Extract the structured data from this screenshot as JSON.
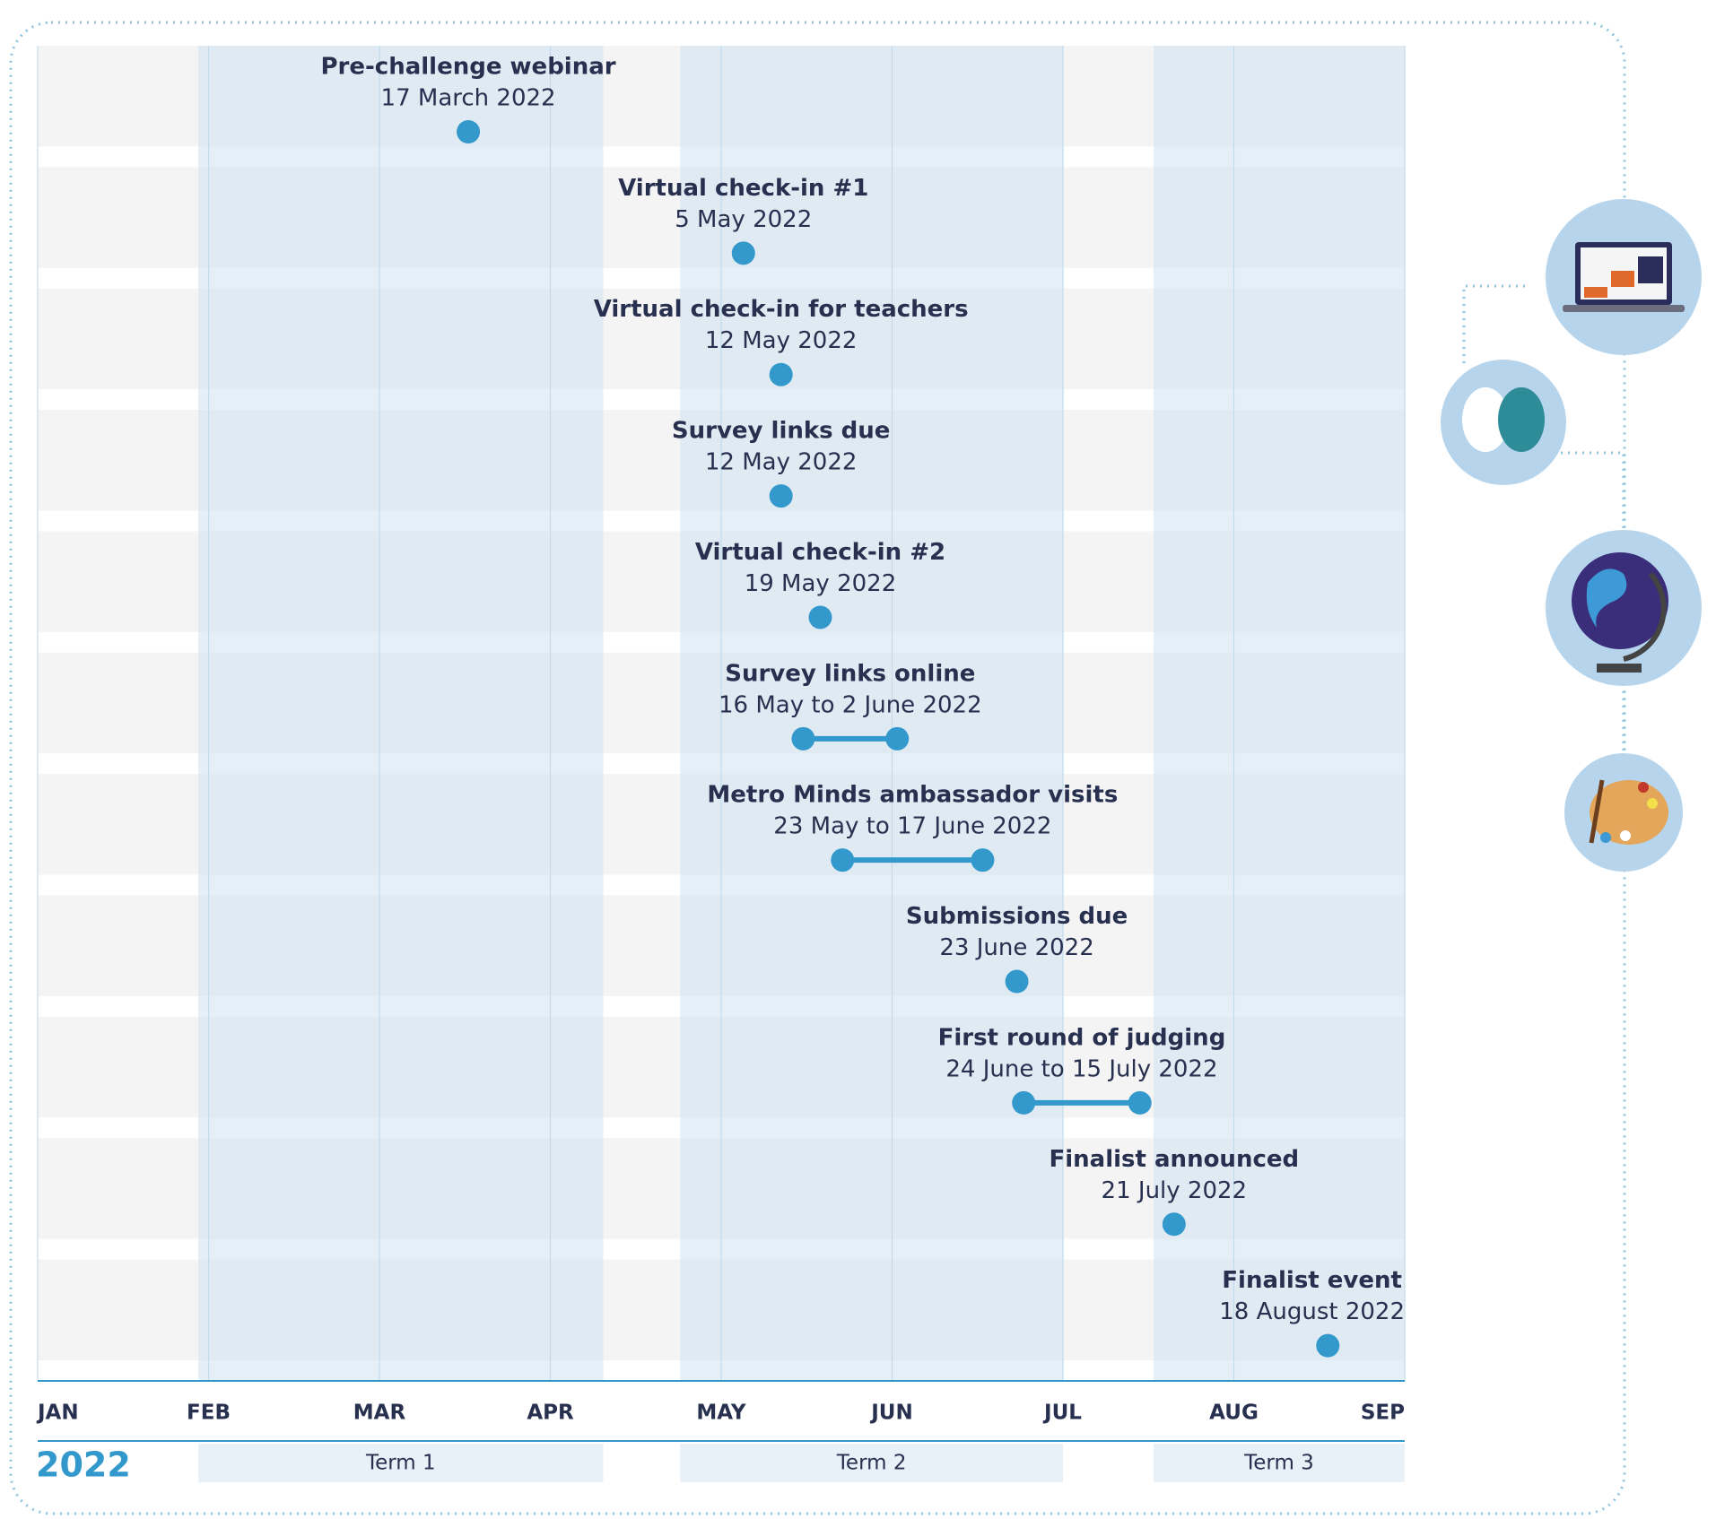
{
  "chart_data": {
    "type": "timeline",
    "year": "2022",
    "xlim": [
      0,
      8
    ],
    "xticks": [
      {
        "value": 0,
        "label": "JAN"
      },
      {
        "value": 1,
        "label": "FEB"
      },
      {
        "value": 2,
        "label": "MAR"
      },
      {
        "value": 3,
        "label": "APR"
      },
      {
        "value": 4,
        "label": "MAY"
      },
      {
        "value": 5,
        "label": "JUN"
      },
      {
        "value": 6,
        "label": "JUL"
      },
      {
        "value": 7,
        "label": "AUG"
      },
      {
        "value": 8,
        "label": "SEP"
      }
    ],
    "grid": true,
    "color": "#3399cc",
    "terms": [
      {
        "name": "Term 1",
        "start": 0.94,
        "end": 3.31
      },
      {
        "name": "Term 2",
        "start": 3.76,
        "end": 6.0
      },
      {
        "name": "Term 3",
        "start": 6.53,
        "end": 8
      }
    ],
    "events": [
      {
        "label": "Pre-challenge webinar",
        "date": "17 March 2022",
        "start": 2.52
      },
      {
        "label": "Virtual check-in #1",
        "date": "5 May 2022",
        "start": 4.13
      },
      {
        "label": "Virtual check-in for teachers",
        "date": "12 May 2022",
        "start": 4.35
      },
      {
        "label": "Survey links due",
        "date": "12 May 2022",
        "start": 4.35
      },
      {
        "label": "Virtual check-in #2",
        "date": "19 May 2022",
        "start": 4.58
      },
      {
        "label": "Survey links online",
        "date": "16 May to 2 June 2022",
        "start": 4.48,
        "end": 5.03
      },
      {
        "label": "Metro Minds ambassador visits",
        "date": "23 May to 17 June 2022",
        "start": 4.71,
        "end": 5.53
      },
      {
        "label": "Submissions due",
        "date": "23 June 2022",
        "start": 5.73
      },
      {
        "label": "First round of judging",
        "date": "24 June to 15 July 2022",
        "start": 5.77,
        "end": 6.45
      },
      {
        "label": "Finalist announced",
        "date": "21 July 2022",
        "start": 6.65
      },
      {
        "label": "Finalist event",
        "date": "18 August 2022",
        "start": 7.55
      }
    ]
  }
}
